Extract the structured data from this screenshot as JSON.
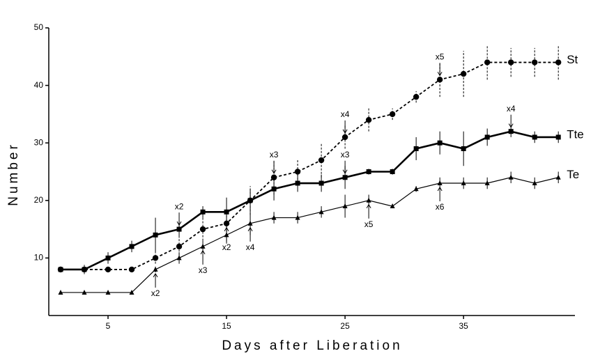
{
  "chart_data": {
    "type": "line",
    "x_label": "Days after Liberation",
    "y_label": "Number",
    "x": [
      1,
      3,
      5,
      7,
      9,
      11,
      13,
      15,
      17,
      19,
      21,
      23,
      25,
      27,
      29,
      31,
      33,
      35,
      37,
      39,
      41,
      43
    ],
    "series": [
      {
        "name": "St",
        "color": "#000000",
        "style": "dashed",
        "marker": "circle",
        "values": [
          8,
          8,
          8,
          8,
          10,
          12,
          15,
          16,
          20,
          24,
          25,
          27,
          31,
          34,
          35,
          38,
          41,
          42,
          44,
          44,
          44,
          44
        ],
        "errors": [
          0.5,
          0.5,
          0.3,
          0.3,
          1,
          1.5,
          2,
          2,
          2.5,
          3,
          2,
          3,
          2,
          2,
          1,
          1,
          3,
          4,
          3,
          2.5,
          2.5,
          3
        ]
      },
      {
        "name": "Tte",
        "color": "#000000",
        "style": "bold",
        "marker": "square",
        "values": [
          8,
          8,
          10,
          12,
          14,
          15,
          18,
          18,
          20,
          22,
          23,
          23,
          24,
          25,
          25,
          29,
          30,
          29,
          31,
          32,
          31,
          31
        ],
        "errors": [
          0.5,
          0.8,
          1,
          1,
          3,
          1.5,
          1,
          2.5,
          2,
          2,
          1.5,
          1.5,
          2,
          0.5,
          0.5,
          2,
          2,
          3,
          1.5,
          1,
          1,
          1
        ]
      },
      {
        "name": "Te",
        "color": "#000000",
        "style": "solid",
        "marker": "triangle",
        "values": [
          4,
          4,
          4,
          4,
          8,
          10,
          12,
          14,
          16,
          17,
          17,
          18,
          19,
          20,
          19,
          22,
          23,
          23,
          23,
          24,
          23,
          24
        ],
        "errors": [
          0,
          0,
          0,
          0,
          0.5,
          1,
          1,
          1.5,
          2,
          1,
          1,
          1,
          2,
          1,
          0,
          0.5,
          1,
          1,
          1,
          1,
          1,
          1
        ]
      }
    ],
    "annotations": [
      {
        "text": "x2",
        "x": 11,
        "y": 15,
        "dir": "down"
      },
      {
        "text": "x2",
        "x": 9,
        "y": 8,
        "dir": "up"
      },
      {
        "text": "x3",
        "x": 13,
        "y": 12,
        "dir": "up"
      },
      {
        "text": "x2",
        "x": 15,
        "y": 16,
        "dir": "up"
      },
      {
        "text": "x4",
        "x": 17,
        "y": 16,
        "dir": "up"
      },
      {
        "text": "x3",
        "x": 19,
        "y": 24,
        "dir": "down"
      },
      {
        "text": "x4",
        "x": 25,
        "y": 31,
        "dir": "down"
      },
      {
        "text": "x3",
        "x": 25,
        "y": 24,
        "dir": "down"
      },
      {
        "text": "x5",
        "x": 27,
        "y": 20,
        "dir": "up"
      },
      {
        "text": "x6",
        "x": 33,
        "y": 23,
        "dir": "up"
      },
      {
        "text": "x5",
        "x": 33,
        "y": 41,
        "dir": "down"
      },
      {
        "text": "x4",
        "x": 39,
        "y": 32,
        "dir": "down"
      }
    ],
    "xlim": [
      0,
      44.4
    ],
    "ylim": [
      0,
      50
    ],
    "xticks": [
      5,
      15,
      25,
      35
    ],
    "yticks": [
      10,
      20,
      30,
      40,
      50
    ]
  }
}
